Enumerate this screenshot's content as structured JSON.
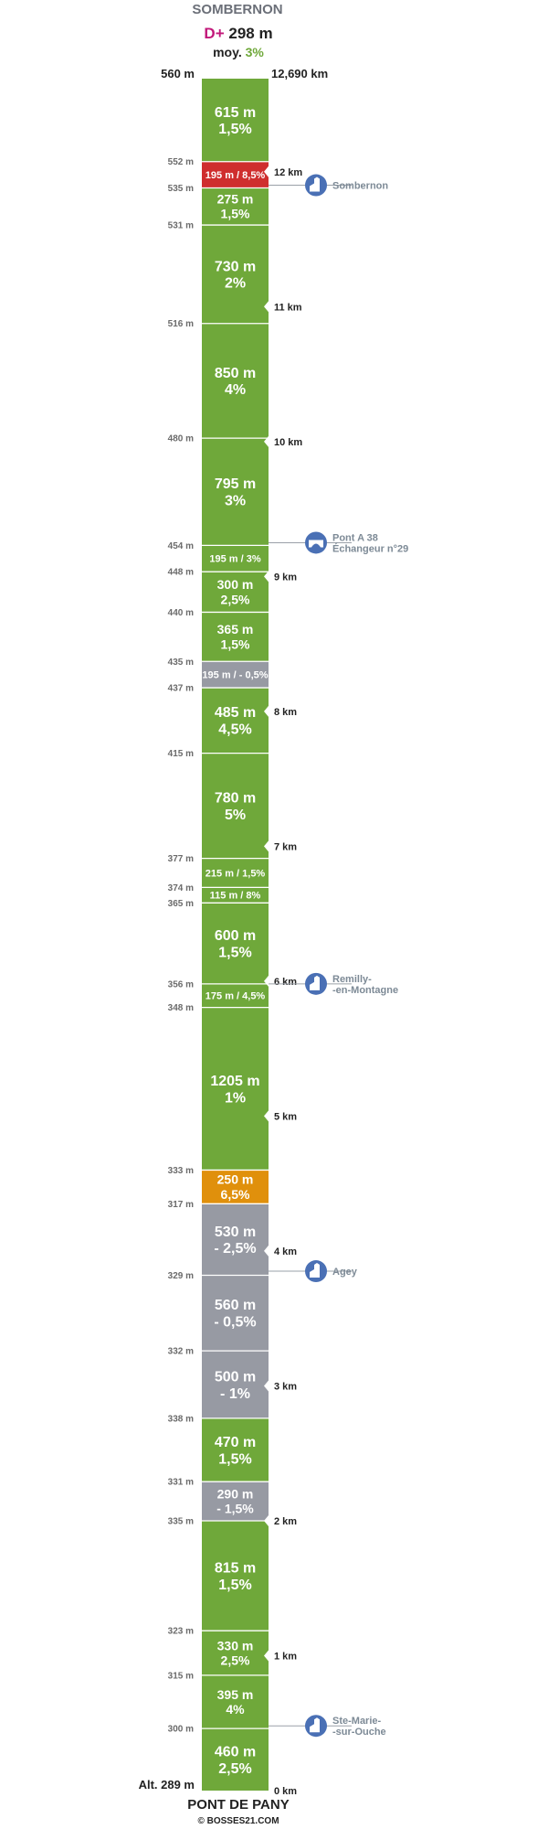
{
  "header": {
    "top_place": "SOMBERNON",
    "dplus_label": "D+",
    "dplus_value": "298 m",
    "avg_label": "moy.",
    "avg_value": "3%",
    "top_altitude": "560 m",
    "total_distance": "12,690 km"
  },
  "footer": {
    "bottom_altitude": "Alt. 289 m",
    "bottom_place": "PONT DE PANY",
    "credit": "© BOSSES21.COM"
  },
  "colors": {
    "climb": "#6fa83a",
    "steep": "#e0900c",
    "very_steep": "#cf2e2e",
    "descent": "#979aa3",
    "landmark": "#4a70b5",
    "dplus": "#c2187a",
    "avg": "#6fa83a"
  },
  "chart_data": {
    "type": "segment-profile",
    "segments": [
      {
        "label": "615 m\n1,5%",
        "length_m": 615,
        "grade": 1.5,
        "color": "climb"
      },
      {
        "label": "195 m / 8,5%",
        "length_m": 195,
        "grade": 8.5,
        "color": "very_steep"
      },
      {
        "label": "275 m\n1,5%",
        "length_m": 275,
        "grade": 1.5,
        "color": "climb"
      },
      {
        "label": "730 m\n2%",
        "length_m": 730,
        "grade": 2,
        "color": "climb"
      },
      {
        "label": "850 m\n4%",
        "length_m": 850,
        "grade": 4,
        "color": "climb"
      },
      {
        "label": "795 m\n3%",
        "length_m": 795,
        "grade": 3,
        "color": "climb"
      },
      {
        "label": "195 m / 3%",
        "length_m": 195,
        "grade": 3,
        "color": "climb"
      },
      {
        "label": "300 m\n2,5%",
        "length_m": 300,
        "grade": 2.5,
        "color": "climb"
      },
      {
        "label": "365 m\n1,5%",
        "length_m": 365,
        "grade": 1.5,
        "color": "climb"
      },
      {
        "label": "195 m / - 0,5%",
        "length_m": 195,
        "grade": -0.5,
        "color": "descent"
      },
      {
        "label": "485 m\n4,5%",
        "length_m": 485,
        "grade": 4.5,
        "color": "climb"
      },
      {
        "label": "780 m\n5%",
        "length_m": 780,
        "grade": 5,
        "color": "climb"
      },
      {
        "label": "215 m / 1,5%",
        "length_m": 215,
        "grade": 1.5,
        "color": "climb"
      },
      {
        "label": "115 m / 8%",
        "length_m": 115,
        "grade": 8,
        "color": "climb"
      },
      {
        "label": "600 m\n1,5%",
        "length_m": 600,
        "grade": 1.5,
        "color": "climb"
      },
      {
        "label": "175 m / 4,5%",
        "length_m": 175,
        "grade": 4.5,
        "color": "climb"
      },
      {
        "label": "1205 m\n1%",
        "length_m": 1205,
        "grade": 1,
        "color": "climb"
      },
      {
        "label": "250 m\n6,5%",
        "length_m": 250,
        "grade": 6.5,
        "color": "steep"
      },
      {
        "label": "530 m\n- 2,5%",
        "length_m": 530,
        "grade": -2.5,
        "color": "descent"
      },
      {
        "label": "560 m\n- 0,5%",
        "length_m": 560,
        "grade": -0.5,
        "color": "descent"
      },
      {
        "label": "500 m\n- 1%",
        "length_m": 500,
        "grade": -1,
        "color": "descent"
      },
      {
        "label": "470 m\n1,5%",
        "length_m": 470,
        "grade": 1.5,
        "color": "climb"
      },
      {
        "label": "290 m\n- 1,5%",
        "length_m": 290,
        "grade": -1.5,
        "color": "descent"
      },
      {
        "label": "815 m\n1,5%",
        "length_m": 815,
        "grade": 1.5,
        "color": "climb"
      },
      {
        "label": "330 m\n2,5%",
        "length_m": 330,
        "grade": 2.5,
        "color": "climb"
      },
      {
        "label": "395 m\n4%",
        "length_m": 395,
        "grade": 4,
        "color": "climb"
      },
      {
        "label": "460 m\n2,5%",
        "length_m": 460,
        "grade": 2.5,
        "color": "climb"
      }
    ],
    "altitudes": [
      "552 m",
      "535 m",
      "531 m",
      "516 m",
      "480 m",
      "454 m",
      "448 m",
      "440 m",
      "435 m",
      "437 m",
      "415 m",
      "377 m",
      "374 m",
      "365 m",
      "356 m",
      "348 m",
      "333 m",
      "317 m",
      "329 m",
      "332 m",
      "338 m",
      "331 m",
      "335 m",
      "323 m",
      "315 m",
      "300 m"
    ],
    "km_marks": [
      "12 km",
      "11 km",
      "10 km",
      "9 km",
      "8 km",
      "7 km",
      "6 km",
      "5 km",
      "4 km",
      "3 km",
      "2 km",
      "1 km",
      "0 km"
    ],
    "km_values": [
      12,
      11,
      10,
      9,
      8,
      7,
      6,
      5,
      4,
      3,
      2,
      1,
      0
    ],
    "landmarks": [
      {
        "label": "Sombernon",
        "km": 11.9,
        "icon": "church-icon"
      },
      {
        "label": "Pont A 38\nÉchangeur n°29",
        "km": 9.25,
        "icon": "bridge-icon"
      },
      {
        "label": "Remilly-\n-en-Montagne",
        "km": 5.98,
        "icon": "church-icon"
      },
      {
        "label": "Agey",
        "km": 3.85,
        "icon": "church-icon"
      },
      {
        "label": "Ste-Marie-\n-sur-Ouche",
        "km": 0.48,
        "icon": "church-icon"
      }
    ]
  }
}
